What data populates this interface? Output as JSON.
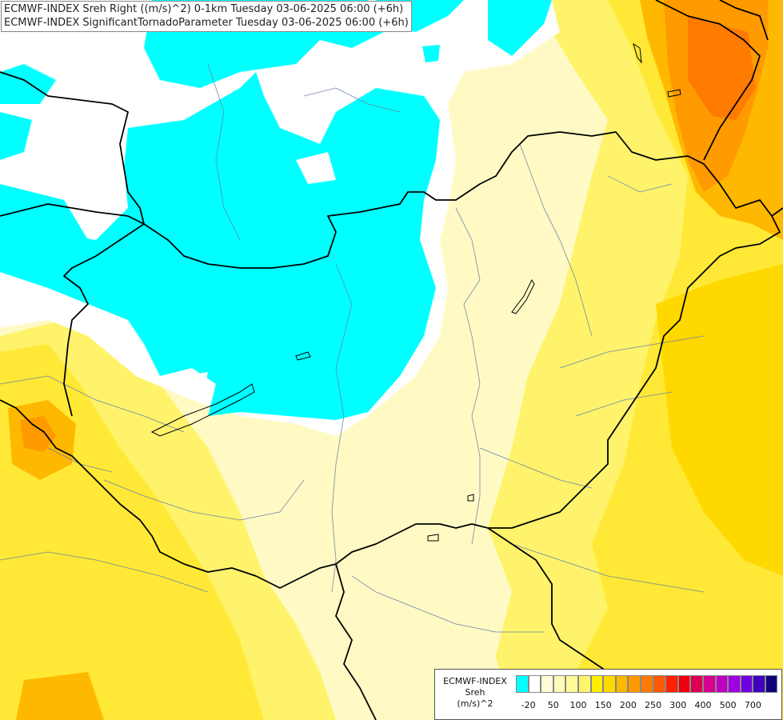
{
  "titles": {
    "line1": "ECMWF-INDEX Sreh Right ((m/s)^2) 0-1km Tuesday 03-06-2025 06:00 (+6h)",
    "line2": "ECMWF-INDEX SignificantTornadoParameter Tuesday 03-06-2025 06:00 (+6h)"
  },
  "legend": {
    "line1": "ECMWF-INDEX",
    "line2": "Sreh",
    "line3": "(m/s)^2",
    "colors": [
      "#00ffff",
      "#ffffff",
      "#fffcd6",
      "#fffcba",
      "#fff99a",
      "#fff56a",
      "#fff000",
      "#ffd800",
      "#ffb800",
      "#ff9a00",
      "#ff7c00",
      "#ff5a00",
      "#ff2200",
      "#ee0010",
      "#dd0050",
      "#d80090",
      "#c000c0",
      "#a000e0",
      "#7000e0",
      "#4000c0",
      "#10007a"
    ],
    "ticks": [
      {
        "label": "-20",
        "pos": 1
      },
      {
        "label": "50",
        "pos": 3
      },
      {
        "label": "100",
        "pos": 5
      },
      {
        "label": "150",
        "pos": 7
      },
      {
        "label": "200",
        "pos": 9
      },
      {
        "label": "250",
        "pos": 11
      },
      {
        "label": "300",
        "pos": 13
      },
      {
        "label": "400",
        "pos": 15
      },
      {
        "label": "500",
        "pos": 17
      },
      {
        "label": "700",
        "pos": 19
      }
    ]
  }
}
